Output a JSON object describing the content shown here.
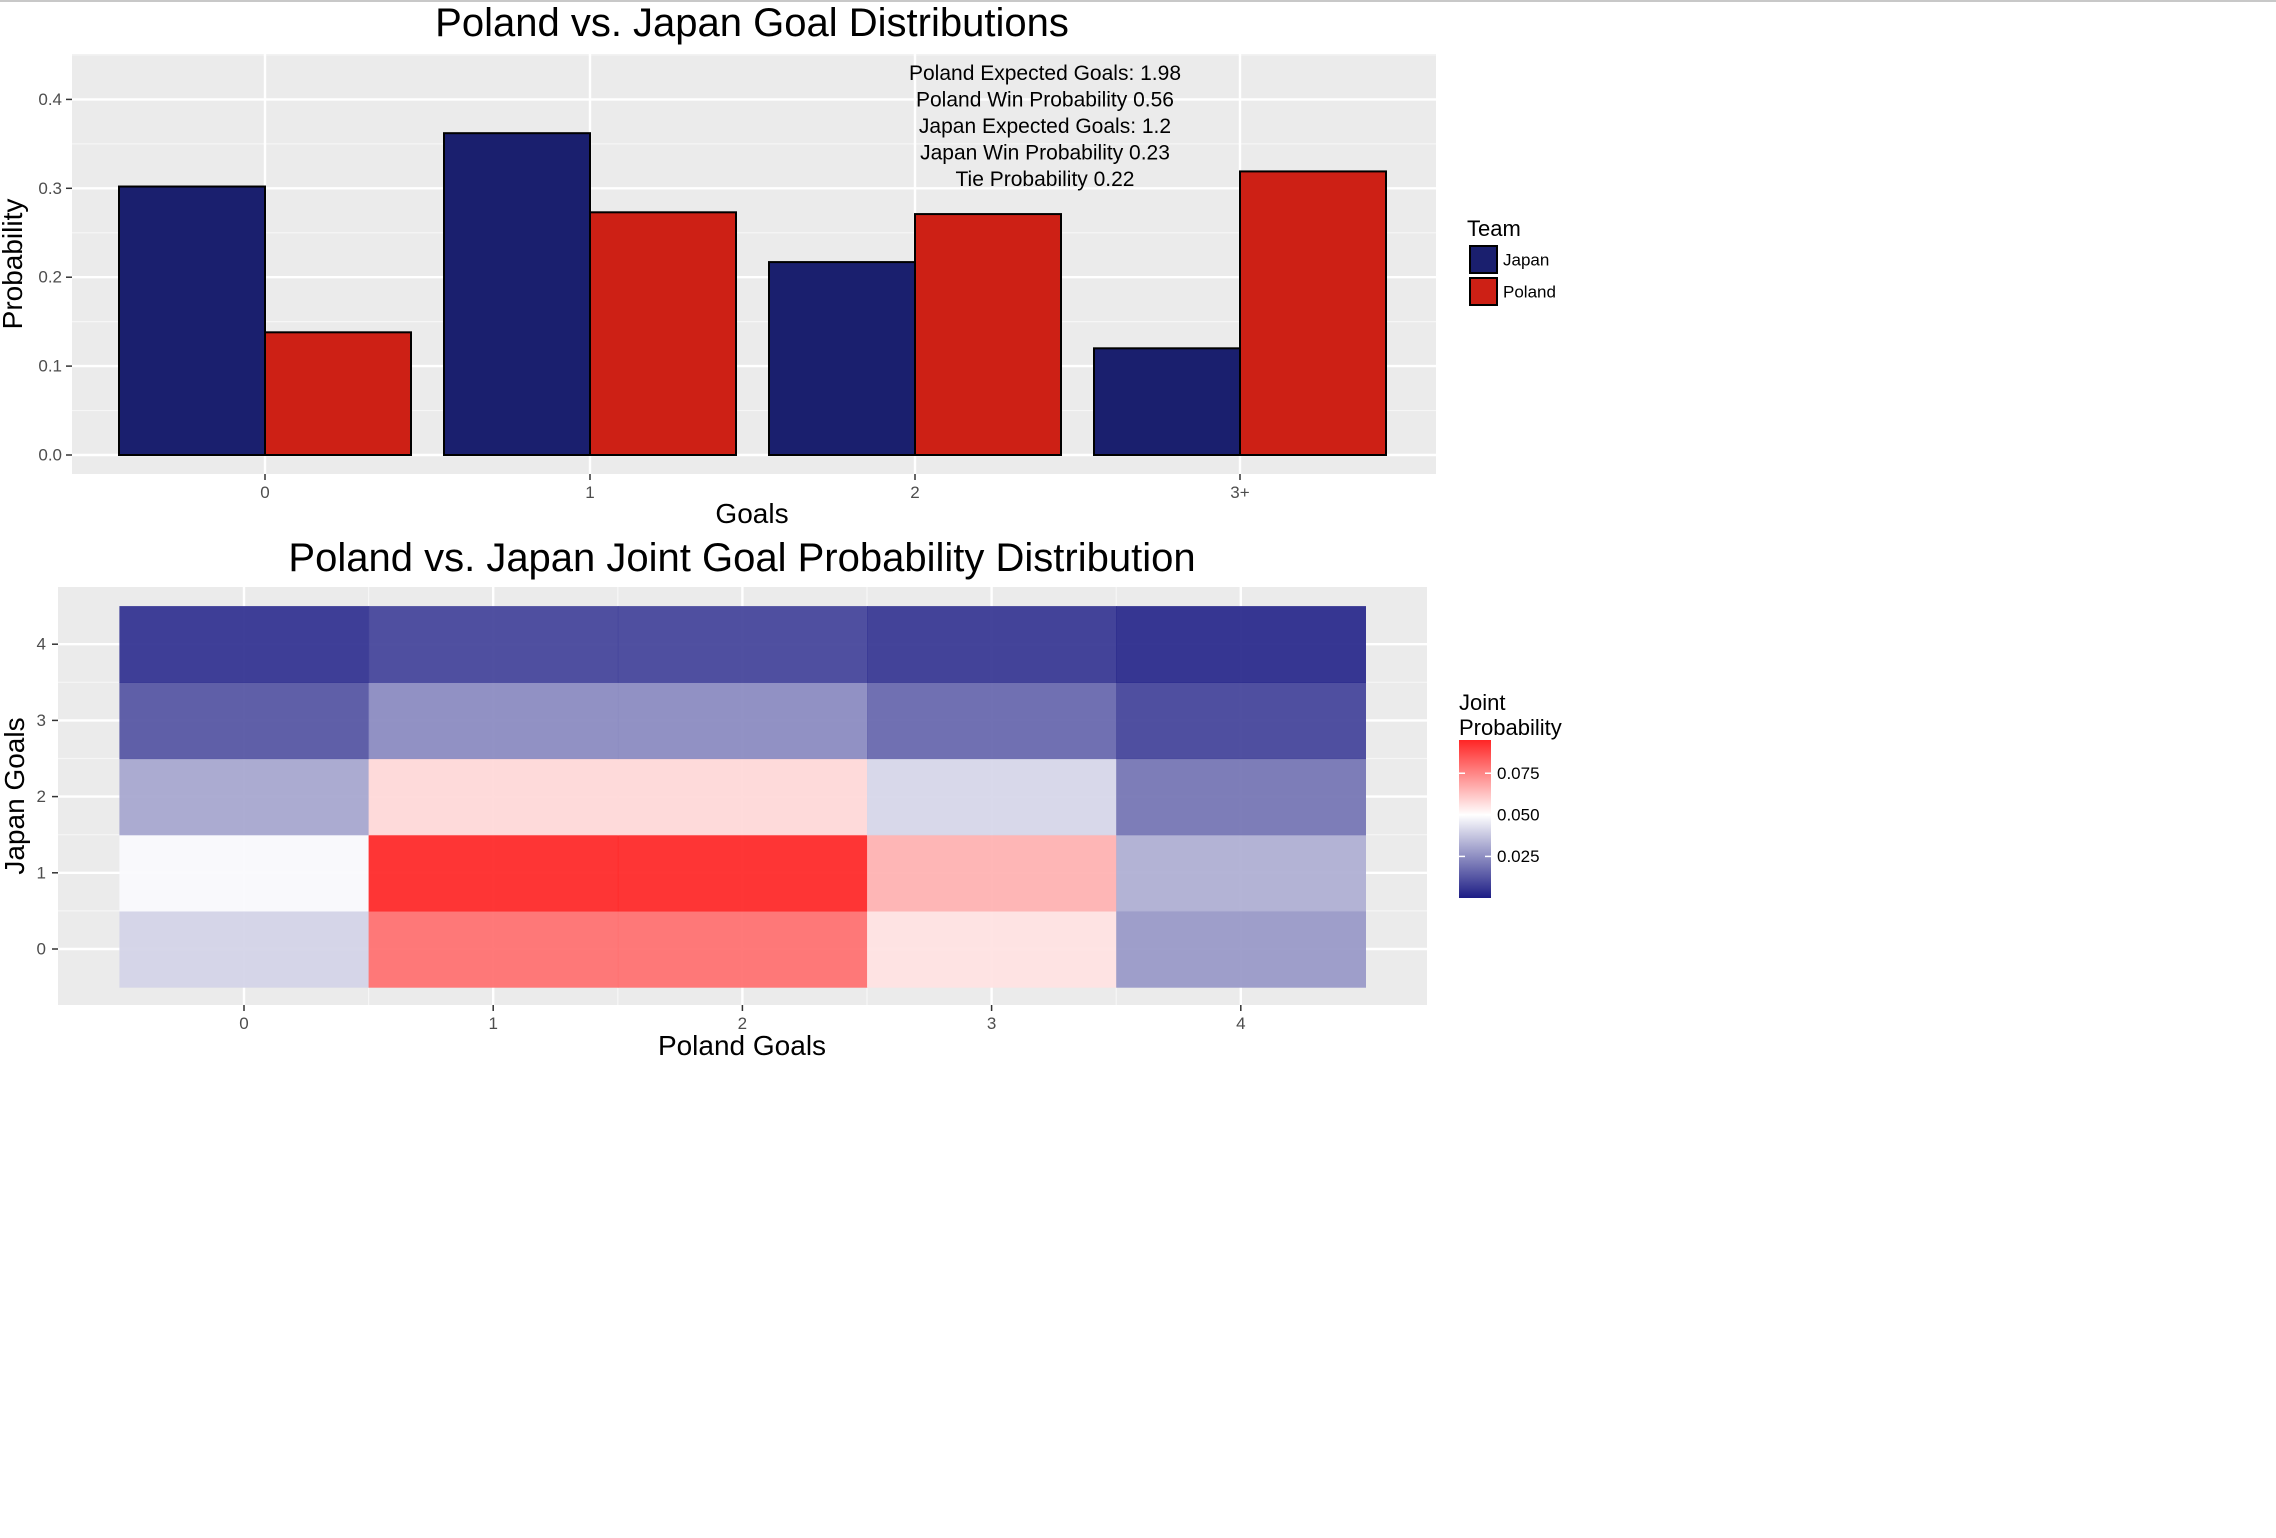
{
  "chart_data": [
    {
      "type": "bar",
      "title": "Poland vs. Japan Goal Distributions",
      "xlabel": "Goals",
      "ylabel": "Probability",
      "categories": [
        "0",
        "1",
        "2",
        "3+"
      ],
      "ylim": [
        0,
        0.45
      ],
      "yticks": [
        "0.0",
        "0.1",
        "0.2",
        "0.3",
        "0.4"
      ],
      "series": [
        {
          "name": "Japan",
          "color": "#1a1f6e",
          "values": [
            0.302,
            0.362,
            0.217,
            0.12
          ]
        },
        {
          "name": "Poland",
          "color": "#cd2015",
          "values": [
            0.138,
            0.273,
            0.271,
            0.319
          ]
        }
      ],
      "legend": {
        "title": "Team",
        "position": "right"
      },
      "annotations": [
        "Poland Expected Goals: 1.98",
        "Poland Win Probability 0.56",
        "Japan Expected Goals: 1.2",
        "Japan Win Probability 0.23",
        "Tie Probability 0.22"
      ],
      "grid": true
    },
    {
      "type": "heatmap",
      "title": "Poland vs. Japan Joint Goal Probability Distribution",
      "xlabel": "Poland Goals",
      "ylabel": "Japan Goals",
      "x": [
        "0",
        "1",
        "2",
        "3",
        "4"
      ],
      "y": [
        "0",
        "1",
        "2",
        "3",
        "4"
      ],
      "values": [
        [
          0.04,
          0.08,
          0.08,
          0.056,
          0.027
        ],
        [
          0.049,
          0.095,
          0.095,
          0.066,
          0.032
        ],
        [
          0.03,
          0.058,
          0.058,
          0.041,
          0.019
        ],
        [
          0.012,
          0.024,
          0.024,
          0.016,
          0.008
        ],
        [
          0.004,
          0.008,
          0.008,
          0.005,
          0.002
        ]
      ],
      "scale": {
        "low": "#1d1d85",
        "mid": "#ffffff",
        "high": "#ff2525",
        "midpoint": 0.05,
        "min": 0.0,
        "max": 0.095
      },
      "legend": {
        "title": "Joint Probability",
        "title_lines": [
          "Joint",
          "Probability"
        ],
        "ticks": [
          "0.025",
          "0.050",
          "0.075"
        ],
        "position": "right"
      },
      "grid": true
    }
  ]
}
